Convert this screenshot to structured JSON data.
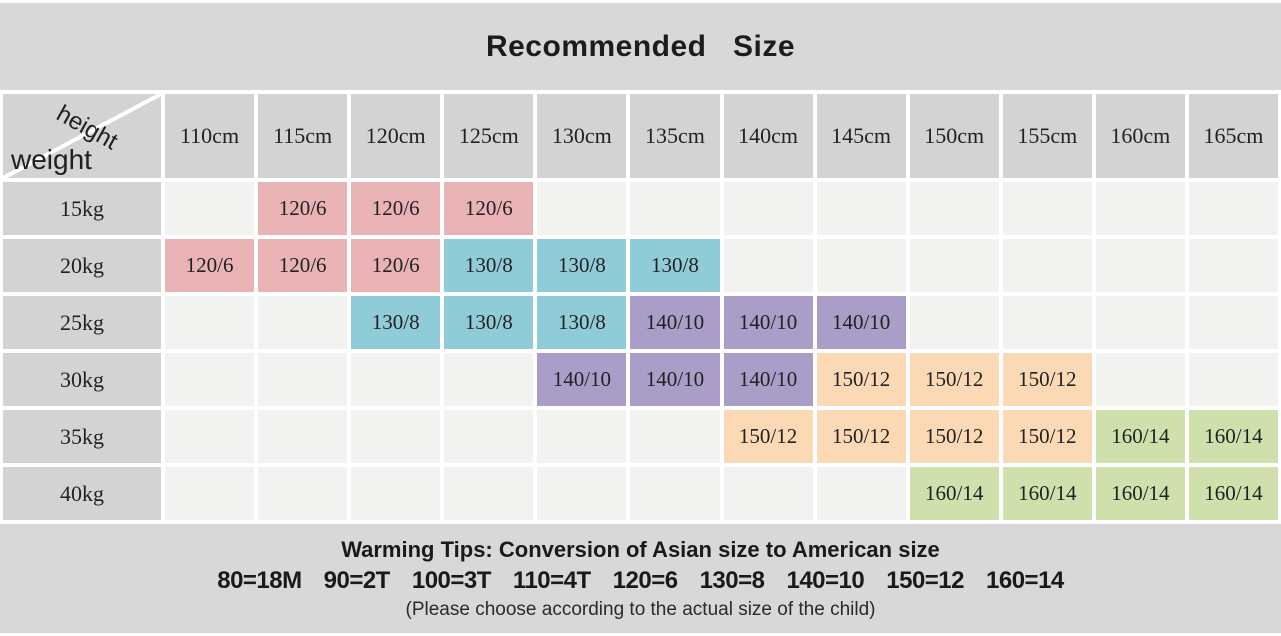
{
  "title": "Recommended   Size",
  "corner": {
    "diagonal_top_label": "height",
    "diagonal_bottom_label": "weight"
  },
  "colors": {
    "pink": "#e9b3b6",
    "blue": "#8fccd8",
    "purple": "#aa9ec8",
    "orange": "#fbd9b5",
    "green": "#cfe0ad",
    "header_gray": "#d3d3d3",
    "band_gray": "#d8d8d8",
    "empty_cell": "#f2f2f0"
  },
  "footer": {
    "tips_title": "Warming Tips: Conversion of Asian size to American size",
    "conversions": [
      "80=18M",
      "90=2T",
      "100=3T",
      "110=4T",
      "120=6",
      "130=8",
      "140=10",
      "150=12",
      "160=14"
    ],
    "note": "(Please choose according to the actual size of the child)"
  },
  "chart_data": {
    "type": "table",
    "title": "Recommended Size",
    "column_axis_label": "height",
    "row_axis_label": "weight",
    "columns": [
      "110cm",
      "115cm",
      "120cm",
      "125cm",
      "130cm",
      "135cm",
      "140cm",
      "145cm",
      "150cm",
      "155cm",
      "160cm",
      "165cm"
    ],
    "size_color_legend": {
      "120/6": "pink",
      "130/8": "blue",
      "140/10": "purple",
      "150/12": "orange",
      "160/14": "green"
    },
    "rows": [
      {
        "label": "15kg",
        "cells": [
          null,
          {
            "text": "120/6",
            "color": "pink"
          },
          {
            "text": "120/6",
            "color": "pink"
          },
          {
            "text": "120/6",
            "color": "pink"
          },
          null,
          null,
          null,
          null,
          null,
          null,
          null,
          null
        ]
      },
      {
        "label": "20kg",
        "cells": [
          {
            "text": "120/6",
            "color": "pink"
          },
          {
            "text": "120/6",
            "color": "pink"
          },
          {
            "text": "120/6",
            "color": "pink"
          },
          {
            "text": "130/8",
            "color": "blue"
          },
          {
            "text": "130/8",
            "color": "blue"
          },
          {
            "text": "130/8",
            "color": "blue"
          },
          null,
          null,
          null,
          null,
          null,
          null
        ]
      },
      {
        "label": "25kg",
        "cells": [
          null,
          null,
          {
            "text": "130/8",
            "color": "blue"
          },
          {
            "text": "130/8",
            "color": "blue"
          },
          {
            "text": "130/8",
            "color": "blue"
          },
          {
            "text": "140/10",
            "color": "purple"
          },
          {
            "text": "140/10",
            "color": "purple"
          },
          {
            "text": "140/10",
            "color": "purple"
          },
          null,
          null,
          null,
          null
        ]
      },
      {
        "label": "30kg",
        "cells": [
          null,
          null,
          null,
          null,
          {
            "text": "140/10",
            "color": "purple"
          },
          {
            "text": "140/10",
            "color": "purple"
          },
          {
            "text": "140/10",
            "color": "purple"
          },
          {
            "text": "150/12",
            "color": "orange"
          },
          {
            "text": "150/12",
            "color": "orange"
          },
          {
            "text": "150/12",
            "color": "orange"
          },
          null,
          null
        ]
      },
      {
        "label": "35kg",
        "cells": [
          null,
          null,
          null,
          null,
          null,
          null,
          {
            "text": "150/12",
            "color": "orange"
          },
          {
            "text": "150/12",
            "color": "orange"
          },
          {
            "text": "150/12",
            "color": "orange"
          },
          {
            "text": "150/12",
            "color": "orange"
          },
          {
            "text": "160/14",
            "color": "green"
          },
          {
            "text": "160/14",
            "color": "green"
          }
        ]
      },
      {
        "label": "40kg",
        "cells": [
          null,
          null,
          null,
          null,
          null,
          null,
          null,
          null,
          {
            "text": "160/14",
            "color": "green"
          },
          {
            "text": "160/14",
            "color": "green"
          },
          {
            "text": "160/14",
            "color": "green"
          },
          {
            "text": "160/14",
            "color": "green"
          }
        ]
      }
    ]
  }
}
